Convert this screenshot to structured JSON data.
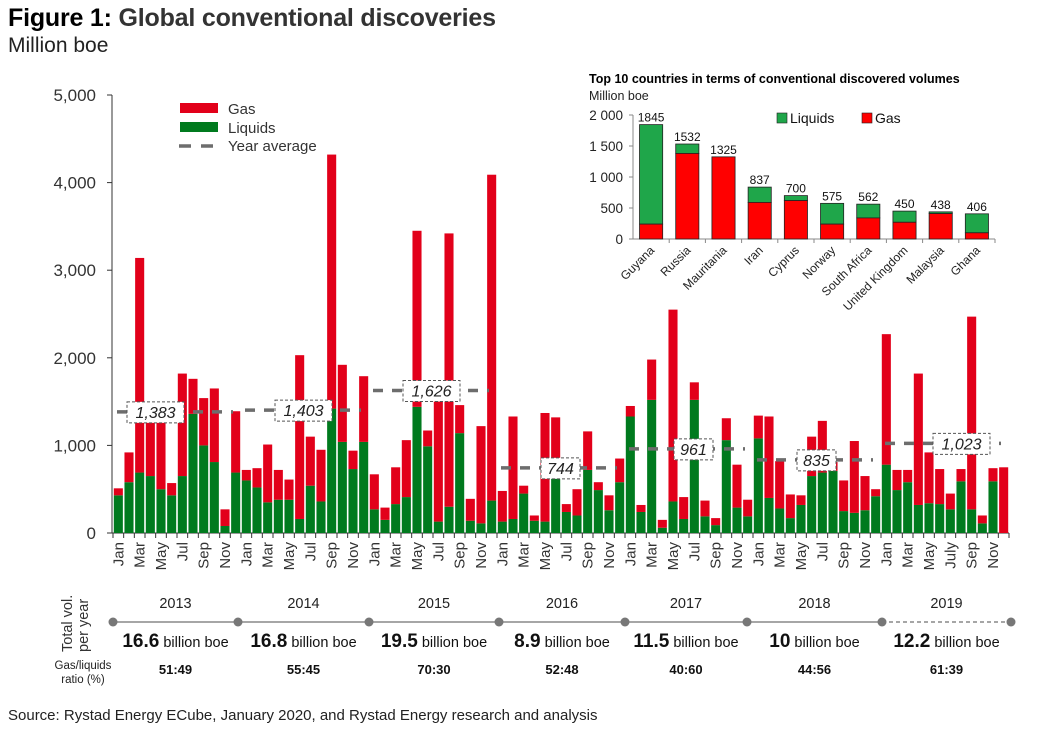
{
  "header": {
    "title_lead": "Figure 1:",
    "title_rest": "Global conventional discoveries",
    "subtitle": "Million boe"
  },
  "colors": {
    "gas": "#e2001a",
    "liquids": "#007a1e",
    "average": "#6d6d6d",
    "inset_gas": "#ff0000",
    "inset_liquids": "#1fa64a"
  },
  "chart_data": [
    {
      "type": "bar",
      "stacked": true,
      "title": "Global conventional discoveries",
      "ylabel": "Million boe",
      "ylim": [
        0,
        5000
      ],
      "yticks": [
        "0",
        "1,000",
        "2,000",
        "3,000",
        "4,000",
        "5,000"
      ],
      "ytick_values": [
        0,
        1000,
        2000,
        3000,
        4000,
        5000
      ],
      "legend": [
        "Gas",
        "Liquids",
        "Year average"
      ],
      "legend_position": "top-left",
      "years": [
        "2013",
        "2014",
        "2015",
        "2016",
        "2017",
        "2018",
        "2019"
      ],
      "month_labels": [
        [
          "Jan",
          "Mar",
          "May",
          "Jul",
          "Sep",
          "Nov"
        ],
        [
          "Jan",
          "Mar",
          "May",
          "Jul",
          "Sep",
          "Nov"
        ],
        [
          "Jan",
          "Mar",
          "May",
          "Jul",
          "Sep",
          "Nov"
        ],
        [
          "Jan",
          "Mar",
          "May",
          "Jul",
          "Sep",
          "Nov"
        ],
        [
          "Jan",
          "Mar",
          "May",
          "Jul",
          "Sep",
          "Nov"
        ],
        [
          "Jan",
          "Mar",
          "May",
          "Jul",
          "Sep",
          "Nov"
        ],
        [
          "Jan",
          "Mar",
          "May",
          "July",
          "Sep",
          "Nov"
        ]
      ],
      "series": [
        {
          "name": "Liquids",
          "values": [
            430,
            580,
            690,
            650,
            500,
            430,
            650,
            1360,
            1000,
            810,
            80,
            690,
            600,
            520,
            350,
            380,
            380,
            160,
            540,
            360,
            1420,
            1040,
            730,
            1040,
            270,
            150,
            330,
            410,
            1440,
            990,
            130,
            300,
            1140,
            140,
            110,
            370,
            130,
            160,
            450,
            140,
            130,
            730,
            240,
            200,
            720,
            490,
            260,
            580,
            1330,
            240,
            1520,
            60,
            360,
            160,
            1520,
            190,
            90,
            1060,
            290,
            190,
            1080,
            400,
            280,
            170,
            320,
            650,
            690,
            710,
            250,
            230,
            260,
            420,
            780,
            490,
            580,
            320,
            340,
            330,
            270,
            590,
            270,
            110,
            590,
            0
          ]
        },
        {
          "name": "Gas",
          "values": [
            80,
            340,
            2450,
            730,
            950,
            140,
            1170,
            400,
            540,
            840,
            190,
            700,
            120,
            220,
            660,
            340,
            230,
            1870,
            560,
            590,
            2900,
            880,
            210,
            750,
            400,
            140,
            420,
            650,
            2010,
            180,
            1420,
            3120,
            320,
            250,
            1110,
            3720,
            350,
            1170,
            90,
            60,
            1240,
            590,
            90,
            300,
            440,
            90,
            170,
            270,
            120,
            80,
            460,
            90,
            2190,
            250,
            200,
            180,
            80,
            250,
            490,
            190,
            260,
            930,
            540,
            270,
            110,
            450,
            590,
            100,
            350,
            820,
            390,
            80,
            1490,
            230,
            140,
            1500,
            580,
            400,
            180,
            140,
            2200,
            90,
            150,
            750
          ]
        }
      ],
      "year_averages": [
        {
          "year": "2013",
          "value": 1383,
          "label": "1,383"
        },
        {
          "year": "2014",
          "value": 1403,
          "label": "1,403"
        },
        {
          "year": "2015",
          "value": 1626,
          "label": "1,626"
        },
        {
          "year": "2016",
          "value": 744,
          "label": "744"
        },
        {
          "year": "2017",
          "value": 961,
          "label": "961"
        },
        {
          "year": "2018",
          "value": 835,
          "label": "835"
        },
        {
          "year": "2019",
          "value": 1023,
          "label": "1,023"
        }
      ]
    },
    {
      "type": "bar",
      "stacked": true,
      "title": "Top 10 countries in terms of conventional discovered volumes",
      "ylabel": "Million boe",
      "ylim": [
        0,
        2000
      ],
      "yticks": [
        "0",
        "500",
        "1 000",
        "1 500",
        "2 000"
      ],
      "ytick_values": [
        0,
        500,
        1000,
        1500,
        2000
      ],
      "legend": [
        "Liquids",
        "Gas"
      ],
      "legend_position": "top-right",
      "categories": [
        "Guyana",
        "Russia",
        "Mauritania",
        "Iran",
        "Cyprus",
        "Norway",
        "South Africa",
        "United Kingdom",
        "Malaysia",
        "Ghana"
      ],
      "totals": [
        1845,
        1532,
        1325,
        837,
        700,
        575,
        562,
        450,
        438,
        406
      ],
      "series": [
        {
          "name": "Gas",
          "values": [
            240,
            1380,
            1325,
            590,
            620,
            240,
            340,
            270,
            410,
            100
          ]
        },
        {
          "name": "Liquids",
          "values": [
            1605,
            152,
            0,
            247,
            80,
            335,
            222,
            180,
            28,
            306
          ]
        }
      ]
    }
  ],
  "summary": {
    "row_label_total": [
      "Total vol.",
      "per year"
    ],
    "row_label_ratio": [
      "Gas/liquids",
      "ratio (%)"
    ],
    "unit": "billion boe",
    "years": [
      {
        "year": "2013",
        "total": "16.6",
        "ratio": "51:49"
      },
      {
        "year": "2014",
        "total": "16.8",
        "ratio": "55:45"
      },
      {
        "year": "2015",
        "total": "19.5",
        "ratio": "70:30"
      },
      {
        "year": "2016",
        "total": "8.9",
        "ratio": "52:48"
      },
      {
        "year": "2017",
        "total": "11.5",
        "ratio": "40:60"
      },
      {
        "year": "2018",
        "total": "10",
        "ratio": "44:56"
      },
      {
        "year": "2019",
        "total": "12.2",
        "ratio": "61:39"
      }
    ]
  },
  "footer": {
    "source": "Source: Rystad Energy ECube, January 2020, and Rystad Energy research and analysis"
  }
}
